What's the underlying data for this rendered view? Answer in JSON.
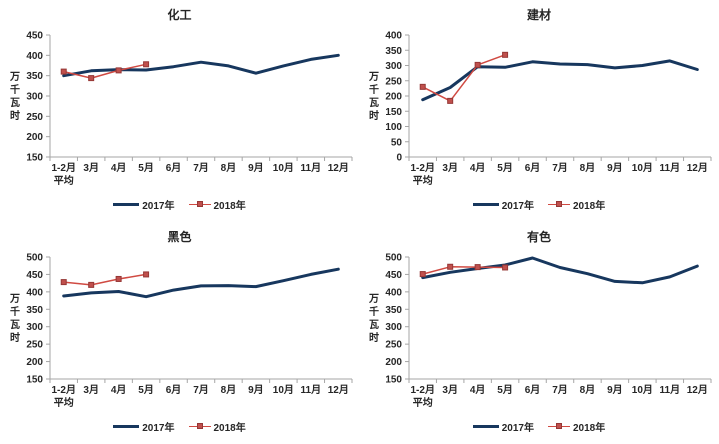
{
  "colors": {
    "series_2017": "#17375E",
    "series_2018_line": "#D04A42",
    "series_2018_marker": "#C0504D",
    "series_2018_marker_border": "#953735",
    "axis": "#A6A6A6",
    "text": "#262626"
  },
  "chart_data": [
    {
      "type": "line",
      "title": "化工",
      "ylabel": "万千瓦时",
      "xlabel": "",
      "ylim": [
        150,
        450
      ],
      "ytick_step": 50,
      "grid": false,
      "legend_position": "bottom",
      "categories": [
        "1-2月\n平均",
        "3月",
        "4月",
        "5月",
        "6月",
        "7月",
        "8月",
        "9月",
        "10月",
        "11月",
        "12月"
      ],
      "series": [
        {
          "name": "2017年",
          "color": "#17375E",
          "values": [
            350,
            362,
            365,
            364,
            372,
            383,
            374,
            356,
            374,
            390,
            400
          ]
        },
        {
          "name": "2018年",
          "color": "#D04A42",
          "marker": "square",
          "marker_fill": "#C0504D",
          "marker_border": "#953735",
          "values": [
            360,
            344,
            363,
            378
          ]
        }
      ]
    },
    {
      "type": "line",
      "title": "建材",
      "ylabel": "万千瓦时",
      "xlabel": "",
      "ylim": [
        0,
        400
      ],
      "ytick_step": 50,
      "grid": false,
      "legend_position": "bottom",
      "categories": [
        "1-2月\n平均",
        "3月",
        "4月",
        "5月",
        "6月",
        "7月",
        "8月",
        "9月",
        "10月",
        "11月",
        "12月"
      ],
      "series": [
        {
          "name": "2017年",
          "color": "#17375E",
          "values": [
            188,
            228,
            296,
            294,
            312,
            305,
            303,
            292,
            300,
            315,
            287
          ]
        },
        {
          "name": "2018年",
          "color": "#D04A42",
          "marker": "square",
          "marker_fill": "#C0504D",
          "marker_border": "#953735",
          "values": [
            230,
            184,
            302,
            335
          ]
        }
      ]
    },
    {
      "type": "line",
      "title": "黑色",
      "ylabel": "万千瓦时",
      "xlabel": "",
      "ylim": [
        150,
        500
      ],
      "ytick_step": 50,
      "grid": false,
      "legend_position": "bottom",
      "categories": [
        "1-2月\n平均",
        "3月",
        "4月",
        "5月",
        "6月",
        "7月",
        "8月",
        "9月",
        "10月",
        "11月",
        "12月"
      ],
      "series": [
        {
          "name": "2017年",
          "color": "#17375E",
          "values": [
            388,
            397,
            401,
            386,
            405,
            417,
            418,
            415,
            432,
            450,
            465
          ]
        },
        {
          "name": "2018年",
          "color": "#D04A42",
          "marker": "square",
          "marker_fill": "#C0504D",
          "marker_border": "#953735",
          "values": [
            428,
            420,
            437,
            450
          ]
        }
      ]
    },
    {
      "type": "line",
      "title": "有色",
      "ylabel": "万千瓦时",
      "xlabel": "",
      "ylim": [
        150,
        500
      ],
      "ytick_step": 50,
      "grid": false,
      "legend_position": "bottom",
      "categories": [
        "1-2月\n平均",
        "3月",
        "4月",
        "5月",
        "6月",
        "7月",
        "8月",
        "9月",
        "10月",
        "11月",
        "12月"
      ],
      "series": [
        {
          "name": "2017年",
          "color": "#17375E",
          "values": [
            441,
            456,
            467,
            477,
            497,
            470,
            452,
            430,
            426,
            443,
            474
          ]
        },
        {
          "name": "2018年",
          "color": "#D04A42",
          "marker": "square",
          "marker_fill": "#C0504D",
          "marker_border": "#953735",
          "values": [
            451,
            472,
            471,
            470
          ]
        }
      ]
    }
  ]
}
